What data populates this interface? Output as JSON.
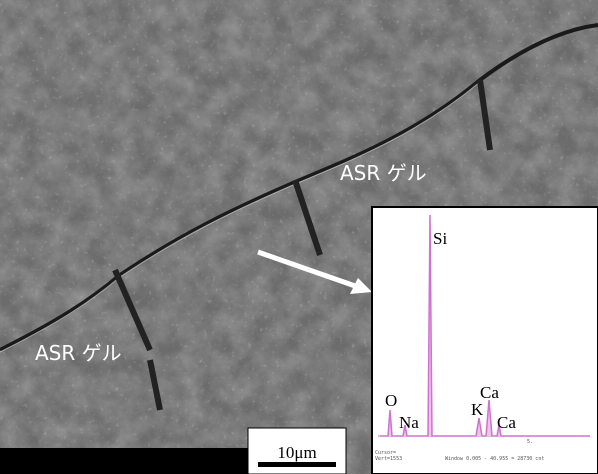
{
  "labels": {
    "gel_upper": "ASR ゲル",
    "gel_lower": "ASR ゲル"
  },
  "scale_bar": "10μm",
  "spectrum": {
    "peaks": [
      "Si",
      "O",
      "Na",
      "K",
      "Ca",
      "Ca"
    ],
    "axis_label": "5.",
    "footer": {
      "cursor": "Cursor=",
      "vert": "Vert=1553",
      "window": "Window 0.005 - 40.955 = 28730 cnt"
    }
  }
}
